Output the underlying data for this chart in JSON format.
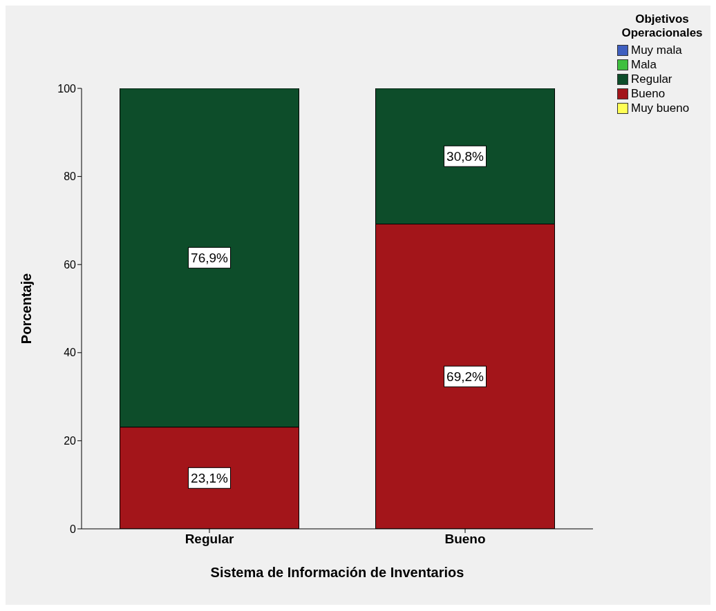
{
  "chart_data": {
    "type": "bar",
    "stacked": true,
    "xlabel": "Sistema de Información de Inventarios",
    "ylabel": "Porcentaje",
    "legend_title": "Objetivos Operacionales",
    "legend": "top right",
    "categories": [
      "Regular",
      "Bueno"
    ],
    "ylim": [
      0,
      100
    ],
    "yticks": [
      0,
      20,
      40,
      60,
      80,
      100
    ],
    "series": [
      {
        "name": "Muy bueno",
        "color": "#ffff55",
        "values": [
          null,
          null
        ]
      },
      {
        "name": "Bueno",
        "color": "#a3151a",
        "values": [
          23.1,
          69.2
        ],
        "value_labels": [
          "23,1%",
          "69,2%"
        ]
      },
      {
        "name": "Regular",
        "color": "#0d4d2a",
        "values": [
          76.9,
          30.8
        ],
        "value_labels": [
          "76,9%",
          "30,8%"
        ]
      },
      {
        "name": "Mala",
        "color": "#3fbf3f",
        "values": [
          null,
          null
        ]
      },
      {
        "name": "Muy mala",
        "color": "#3f5fbf",
        "values": [
          null,
          null
        ]
      }
    ]
  }
}
